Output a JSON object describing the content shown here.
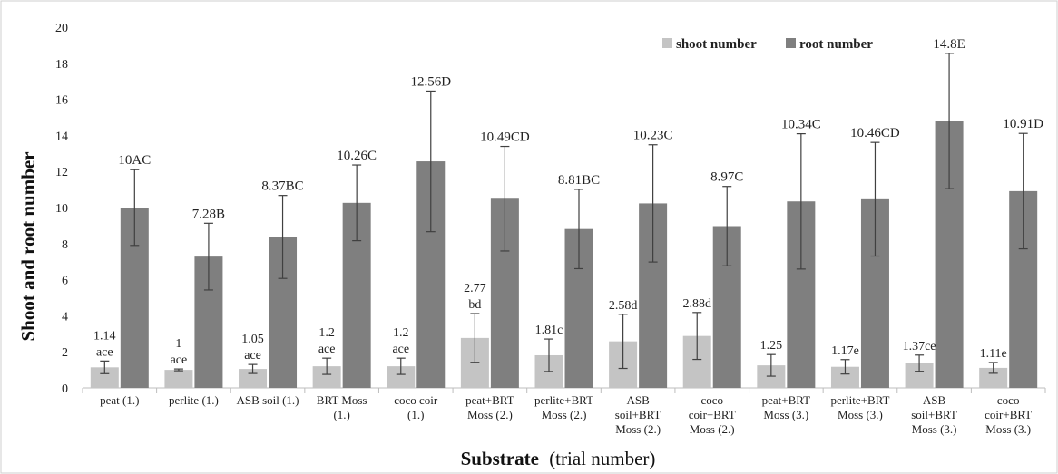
{
  "chart_data": {
    "type": "bar",
    "ylabel": "Shoot and root number",
    "xlabel_bold": "Substrate",
    "xlabel_rest": "(trial number)",
    "ylim": [
      0,
      20
    ],
    "yticks": [
      0,
      2,
      4,
      6,
      8,
      10,
      12,
      14,
      16,
      18,
      20
    ],
    "legend_position": "top-right",
    "grid": false,
    "categories": [
      [
        "peat (1.)"
      ],
      [
        "perlite (1.)"
      ],
      [
        "ASB soil (1.)"
      ],
      [
        "BRT Moss",
        "(1.)"
      ],
      [
        "coco coir",
        "(1.)"
      ],
      [
        "peat+BRT",
        "Moss (2.)"
      ],
      [
        "perlite+BRT",
        "Moss (2.)"
      ],
      [
        "ASB",
        "soil+BRT",
        "Moss (2.)"
      ],
      [
        "coco",
        "coir+BRT",
        "Moss (2.)"
      ],
      [
        "peat+BRT",
        "Moss (3.)"
      ],
      [
        "perlite+BRT",
        "Moss (3.)"
      ],
      [
        "ASB",
        "soil+BRT",
        "Moss (3.)"
      ],
      [
        "coco",
        "coir+BRT",
        "Moss (3.)"
      ]
    ],
    "series": [
      {
        "name": "shoot number",
        "color": "#c4c4c4",
        "values": [
          1.14,
          1.0,
          1.05,
          1.2,
          1.2,
          2.77,
          1.81,
          2.58,
          2.88,
          1.25,
          1.17,
          1.37,
          1.11
        ],
        "errors": [
          0.35,
          0.05,
          0.25,
          0.45,
          0.45,
          1.35,
          0.9,
          1.5,
          1.3,
          0.6,
          0.4,
          0.45,
          0.3
        ],
        "labels": [
          [
            "1.14",
            "ace"
          ],
          [
            "1",
            "ace"
          ],
          [
            "1.05",
            "ace"
          ],
          [
            "1.2",
            "ace"
          ],
          [
            "1.2",
            "ace"
          ],
          [
            "2.77",
            "bd"
          ],
          [
            "1.81c"
          ],
          [
            "2.58d"
          ],
          [
            "2.88d"
          ],
          [
            "1.25"
          ],
          [
            "1.17e"
          ],
          [
            "1.37ce"
          ],
          [
            "1.11e"
          ]
        ]
      },
      {
        "name": "root number",
        "color": "#7f7f7f",
        "values": [
          10.0,
          7.28,
          8.37,
          10.26,
          12.56,
          10.49,
          8.81,
          10.23,
          8.97,
          10.34,
          10.46,
          14.8,
          10.91
        ],
        "errors": [
          2.1,
          1.85,
          2.3,
          2.1,
          3.9,
          2.9,
          2.2,
          3.25,
          2.2,
          3.75,
          3.15,
          3.75,
          3.2
        ],
        "labels": [
          [
            "10AC"
          ],
          [
            "7.28B"
          ],
          [
            "8.37BC"
          ],
          [
            "10.26C"
          ],
          [
            "12.56D"
          ],
          [
            "10.49CD"
          ],
          [
            "8.81BC"
          ],
          [
            "10.23C"
          ],
          [
            "8.97C"
          ],
          [
            "10.34C"
          ],
          [
            "10.46CD"
          ],
          [
            "14.8E"
          ],
          [
            "10.91D"
          ]
        ]
      }
    ]
  }
}
